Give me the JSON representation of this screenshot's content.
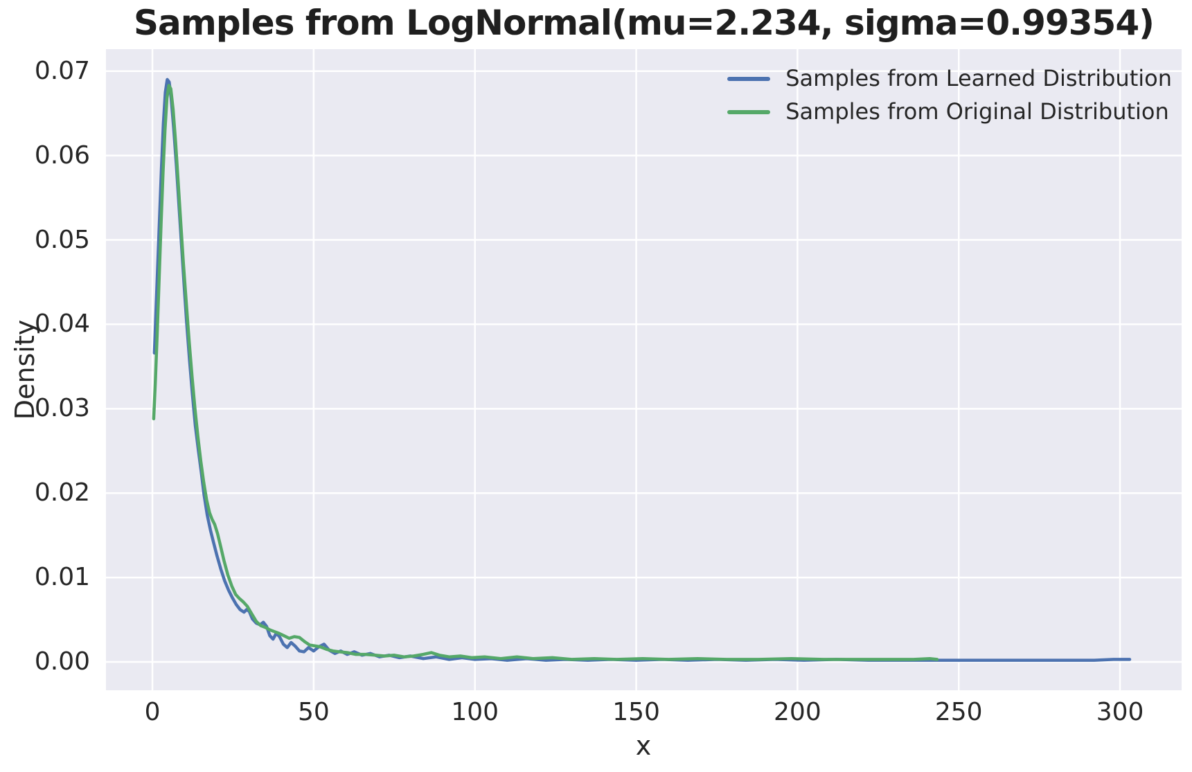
{
  "title": "Samples from LogNormal(mu=2.234, sigma=0.99354)",
  "colors": {
    "figure_background": "#ffffff",
    "plot_background": "#eaeaf2",
    "grid": "#ffffff",
    "text": "#262626",
    "learned_line": "#4c72b0",
    "original_line": "#55a868"
  },
  "chart_data": {
    "type": "line",
    "title": "Samples from LogNormal(mu=2.234, sigma=0.99354)",
    "xlabel": "x",
    "ylabel": "Density",
    "xlim": [
      -14.4,
      319.1
    ],
    "ylim": [
      -0.00336,
      0.0726
    ],
    "grid": true,
    "legend_position": "upper right",
    "x_ticks": {
      "values": [
        0,
        50,
        100,
        150,
        200,
        250,
        300
      ],
      "labels": [
        "0",
        "50",
        "100",
        "150",
        "200",
        "250",
        "300"
      ]
    },
    "y_ticks": {
      "values": [
        0.0,
        0.01,
        0.02,
        0.03,
        0.04,
        0.05,
        0.06,
        0.07
      ],
      "labels": [
        "0.00",
        "0.01",
        "0.02",
        "0.03",
        "0.04",
        "0.05",
        "0.06",
        "0.07"
      ]
    },
    "series": [
      {
        "name": "Samples from Learned Distribution",
        "color": "#4c72b0",
        "peak": {
          "x": 4.6,
          "density": 0.069
        },
        "x_range": [
          0.6,
          303
        ],
        "points": [
          [
            0.6,
            0.0366
          ],
          [
            1.0,
            0.0405
          ],
          [
            1.6,
            0.0465
          ],
          [
            2.2,
            0.0525
          ],
          [
            2.8,
            0.0585
          ],
          [
            3.4,
            0.0638
          ],
          [
            4.0,
            0.0675
          ],
          [
            4.6,
            0.069
          ],
          [
            5.2,
            0.0687
          ],
          [
            5.8,
            0.0668
          ],
          [
            6.6,
            0.0632
          ],
          [
            7.4,
            0.059
          ],
          [
            8.2,
            0.0543
          ],
          [
            9.0,
            0.0495
          ],
          [
            9.8,
            0.0448
          ],
          [
            10.6,
            0.0403
          ],
          [
            11.5,
            0.0358
          ],
          [
            12.4,
            0.0317
          ],
          [
            13.3,
            0.028
          ],
          [
            14.2,
            0.0252
          ],
          [
            15.1,
            0.0226
          ],
          [
            16.0,
            0.0198
          ],
          [
            17.0,
            0.0174
          ],
          [
            18.0,
            0.0156
          ],
          [
            19.0,
            0.0141
          ],
          [
            20.0,
            0.0126
          ],
          [
            21.2,
            0.011
          ],
          [
            22.4,
            0.0096
          ],
          [
            23.6,
            0.0085
          ],
          [
            24.8,
            0.0076
          ],
          [
            26.0,
            0.0068
          ],
          [
            27.2,
            0.0062
          ],
          [
            28.4,
            0.0059
          ],
          [
            29.2,
            0.0062
          ],
          [
            30.0,
            0.006
          ],
          [
            31.0,
            0.0051
          ],
          [
            32.2,
            0.0046
          ],
          [
            33.4,
            0.0044
          ],
          [
            34.4,
            0.0047
          ],
          [
            35.4,
            0.0042
          ],
          [
            36.4,
            0.0031
          ],
          [
            37.4,
            0.0027
          ],
          [
            38.4,
            0.0034
          ],
          [
            39.4,
            0.003
          ],
          [
            40.6,
            0.0021
          ],
          [
            41.8,
            0.0017
          ],
          [
            43.0,
            0.0023
          ],
          [
            44.2,
            0.0019
          ],
          [
            45.6,
            0.0013
          ],
          [
            47.0,
            0.0012
          ],
          [
            48.4,
            0.0017
          ],
          [
            50.0,
            0.0013
          ],
          [
            51.6,
            0.0018
          ],
          [
            53.2,
            0.0021
          ],
          [
            54.8,
            0.0014
          ],
          [
            56.6,
            0.001
          ],
          [
            58.4,
            0.0013
          ],
          [
            60.4,
            0.0009
          ],
          [
            62.6,
            0.0012
          ],
          [
            65.0,
            0.0008
          ],
          [
            67.6,
            0.001
          ],
          [
            70.4,
            0.0006
          ],
          [
            73.4,
            0.0008
          ],
          [
            76.6,
            0.0005
          ],
          [
            80.0,
            0.0007
          ],
          [
            84.0,
            0.0004
          ],
          [
            88.0,
            0.0006
          ],
          [
            92.0,
            0.0003
          ],
          [
            96.0,
            0.0005
          ],
          [
            100.0,
            0.0003
          ],
          [
            105,
            0.0004
          ],
          [
            110,
            0.0002
          ],
          [
            116,
            0.0004
          ],
          [
            122,
            0.0002
          ],
          [
            128,
            0.0003
          ],
          [
            135,
            0.0002
          ],
          [
            142,
            0.0003
          ],
          [
            150,
            0.0002
          ],
          [
            158,
            0.0003
          ],
          [
            166,
            0.0002
          ],
          [
            175,
            0.0003
          ],
          [
            184,
            0.0002
          ],
          [
            193,
            0.0003
          ],
          [
            202,
            0.0002
          ],
          [
            212,
            0.0003
          ],
          [
            222,
            0.0002
          ],
          [
            232,
            0.0002
          ],
          [
            242,
            0.0002
          ],
          [
            252,
            0.0002
          ],
          [
            262,
            0.0002
          ],
          [
            272,
            0.0002
          ],
          [
            282,
            0.0002
          ],
          [
            292,
            0.0002
          ],
          [
            298,
            0.0003
          ],
          [
            303,
            0.0003
          ]
        ]
      },
      {
        "name": "Samples from Original Distribution",
        "color": "#55a868",
        "peak": {
          "x": 5.1,
          "density": 0.0683
        },
        "x_range": [
          0.4,
          243.3
        ],
        "points": [
          [
            0.4,
            0.0288
          ],
          [
            0.9,
            0.033
          ],
          [
            1.5,
            0.039
          ],
          [
            2.1,
            0.0455
          ],
          [
            2.7,
            0.052
          ],
          [
            3.3,
            0.058
          ],
          [
            3.9,
            0.063
          ],
          [
            4.5,
            0.0668
          ],
          [
            5.1,
            0.0683
          ],
          [
            5.7,
            0.0679
          ],
          [
            6.4,
            0.0655
          ],
          [
            7.2,
            0.0615
          ],
          [
            8.0,
            0.0568
          ],
          [
            8.8,
            0.052
          ],
          [
            9.6,
            0.0472
          ],
          [
            10.5,
            0.0425
          ],
          [
            11.4,
            0.038
          ],
          [
            12.3,
            0.0338
          ],
          [
            13.2,
            0.03
          ],
          [
            14.1,
            0.0267
          ],
          [
            15.0,
            0.0238
          ],
          [
            15.9,
            0.0213
          ],
          [
            16.8,
            0.0192
          ],
          [
            17.7,
            0.0177
          ],
          [
            18.5,
            0.0169
          ],
          [
            19.3,
            0.0163
          ],
          [
            20.2,
            0.0152
          ],
          [
            21.2,
            0.0136
          ],
          [
            22.2,
            0.012
          ],
          [
            23.4,
            0.0103
          ],
          [
            24.6,
            0.009
          ],
          [
            25.8,
            0.008
          ],
          [
            27.0,
            0.0075
          ],
          [
            28.2,
            0.0071
          ],
          [
            29.4,
            0.0066
          ],
          [
            30.8,
            0.0057
          ],
          [
            32.2,
            0.0048
          ],
          [
            33.6,
            0.0043
          ],
          [
            35.0,
            0.0041
          ],
          [
            36.4,
            0.0038
          ],
          [
            37.8,
            0.0036
          ],
          [
            39.2,
            0.0034
          ],
          [
            40.8,
            0.0031
          ],
          [
            42.4,
            0.0028
          ],
          [
            44.0,
            0.003
          ],
          [
            45.6,
            0.0029
          ],
          [
            47.2,
            0.0024
          ],
          [
            48.8,
            0.002
          ],
          [
            50.4,
            0.0019
          ],
          [
            52.0,
            0.0018
          ],
          [
            54.0,
            0.0015
          ],
          [
            56.0,
            0.0013
          ],
          [
            58.0,
            0.0012
          ],
          [
            60.5,
            0.0011
          ],
          [
            63.0,
            0.0009
          ],
          [
            66.0,
            0.0009
          ],
          [
            69.0,
            0.0008
          ],
          [
            72.0,
            0.0007
          ],
          [
            75.0,
            0.0008
          ],
          [
            78.0,
            0.0006
          ],
          [
            81.0,
            0.0007
          ],
          [
            84.0,
            0.0009
          ],
          [
            86.5,
            0.0011
          ],
          [
            89.0,
            0.0008
          ],
          [
            92.0,
            0.0006
          ],
          [
            95.5,
            0.0007
          ],
          [
            99.0,
            0.0005
          ],
          [
            103,
            0.0006
          ],
          [
            108,
            0.0004
          ],
          [
            113,
            0.0006
          ],
          [
            118,
            0.0004
          ],
          [
            124,
            0.0005
          ],
          [
            130,
            0.0003
          ],
          [
            137,
            0.0004
          ],
          [
            144,
            0.0003
          ],
          [
            152,
            0.0004
          ],
          [
            160,
            0.0003
          ],
          [
            169,
            0.0004
          ],
          [
            178,
            0.0003
          ],
          [
            188,
            0.0003
          ],
          [
            198,
            0.0004
          ],
          [
            208,
            0.0003
          ],
          [
            218,
            0.0003
          ],
          [
            228,
            0.0003
          ],
          [
            236,
            0.0003
          ],
          [
            241,
            0.0004
          ],
          [
            243.3,
            0.0003
          ]
        ]
      }
    ]
  }
}
